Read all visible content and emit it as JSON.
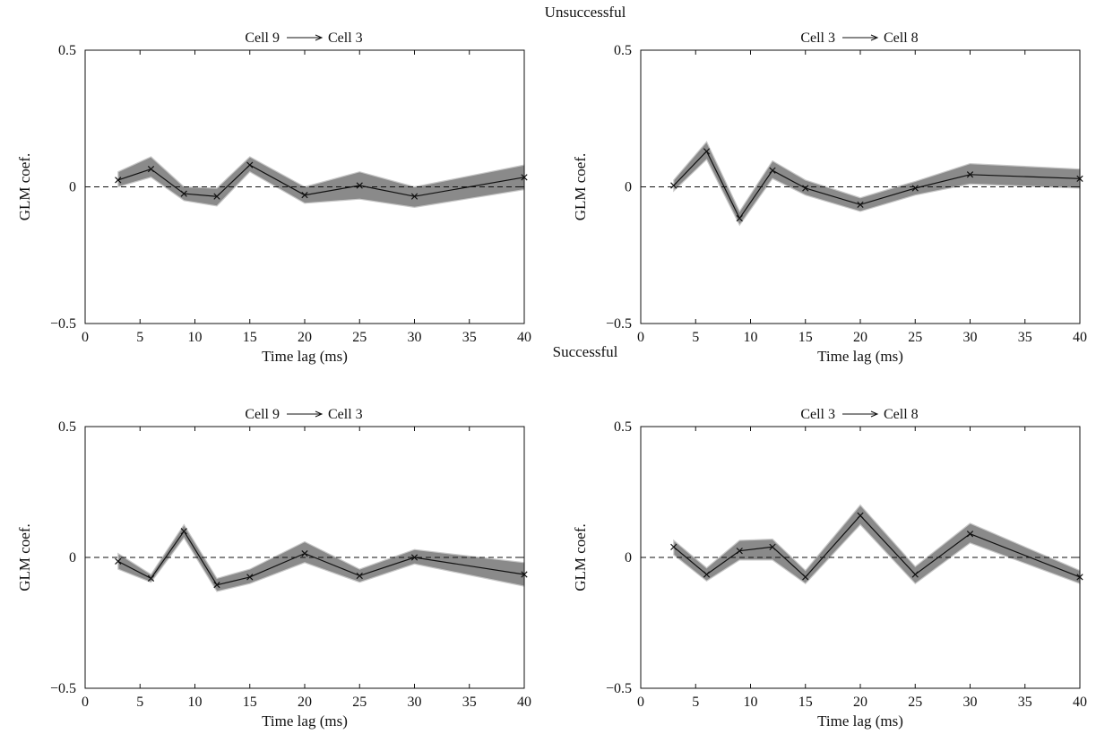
{
  "sections": {
    "unsuccessful": "Unsuccessful",
    "successful": "Successful"
  },
  "colors": {
    "band": "#8a8a8a",
    "band_edge": "#c8c8c8",
    "line": "#111111",
    "axis": "#111111"
  },
  "chart_data": [
    {
      "type": "line",
      "group": "Unsuccessful",
      "title_from": "Cell 9",
      "title_to": "Cell 3",
      "xlabel": "Time lag (ms)",
      "ylabel": "GLM coef.",
      "xlim": [
        0,
        40
      ],
      "ylim": [
        -0.5,
        0.5
      ],
      "xticks": [
        0,
        5,
        10,
        15,
        20,
        25,
        30,
        35,
        40
      ],
      "yticks": [
        -0.5,
        0,
        0.5
      ],
      "ytick_labels": [
        "−0.5",
        "0",
        "0.5"
      ],
      "grid": false,
      "reference_line": 0,
      "x": [
        3,
        6,
        9,
        12,
        15,
        20,
        25,
        30,
        40
      ],
      "y": [
        0.025,
        0.065,
        -0.025,
        -0.035,
        0.08,
        -0.03,
        0.005,
        -0.035,
        0.035
      ],
      "lower": [
        0.0,
        0.035,
        -0.05,
        -0.07,
        0.055,
        -0.06,
        -0.045,
        -0.075,
        -0.01
      ],
      "upper": [
        0.055,
        0.11,
        0.0,
        -0.005,
        0.11,
        0.0,
        0.055,
        0.0,
        0.08
      ]
    },
    {
      "type": "line",
      "group": "Unsuccessful",
      "title_from": "Cell 3",
      "title_to": "Cell 8",
      "xlabel": "Time lag (ms)",
      "ylabel": "GLM coef.",
      "xlim": [
        0,
        40
      ],
      "ylim": [
        -0.5,
        0.5
      ],
      "xticks": [
        0,
        5,
        10,
        15,
        20,
        25,
        30,
        35,
        40
      ],
      "yticks": [
        -0.5,
        0,
        0.5
      ],
      "ytick_labels": [
        "−0.5",
        "0",
        "0.5"
      ],
      "grid": false,
      "reference_line": 0,
      "x": [
        3,
        6,
        9,
        12,
        15,
        20,
        25,
        30,
        40
      ],
      "y": [
        0.005,
        0.13,
        -0.115,
        0.06,
        -0.005,
        -0.065,
        -0.005,
        0.045,
        0.03
      ],
      "lower": [
        -0.015,
        0.1,
        -0.14,
        0.03,
        -0.03,
        -0.09,
        -0.03,
        0.01,
        -0.005
      ],
      "upper": [
        0.025,
        0.165,
        -0.09,
        0.095,
        0.025,
        -0.04,
        0.02,
        0.085,
        0.065
      ]
    },
    {
      "type": "line",
      "group": "Successful",
      "title_from": "Cell 9",
      "title_to": "Cell 3",
      "xlabel": "Time lag (ms)",
      "ylabel": "GLM coef.",
      "xlim": [
        0,
        40
      ],
      "ylim": [
        -0.5,
        0.5
      ],
      "xticks": [
        0,
        5,
        10,
        15,
        20,
        25,
        30,
        35,
        40
      ],
      "yticks": [
        -0.5,
        0,
        0.5
      ],
      "ytick_labels": [
        "−0.5",
        "0",
        "0.5"
      ],
      "grid": false,
      "reference_line": 0,
      "x": [
        3,
        6,
        9,
        12,
        15,
        20,
        25,
        30,
        40
      ],
      "y": [
        -0.015,
        -0.08,
        0.1,
        -0.105,
        -0.075,
        0.015,
        -0.07,
        0.0,
        -0.065
      ],
      "lower": [
        -0.045,
        -0.095,
        0.075,
        -0.13,
        -0.1,
        -0.02,
        -0.095,
        -0.025,
        -0.11
      ],
      "upper": [
        0.015,
        -0.065,
        0.125,
        -0.08,
        -0.045,
        0.06,
        -0.045,
        0.03,
        -0.02
      ]
    },
    {
      "type": "line",
      "group": "Successful",
      "title_from": "Cell 3",
      "title_to": "Cell 8",
      "xlabel": "Time lag (ms)",
      "ylabel": "GLM coef.",
      "xlim": [
        0,
        40
      ],
      "ylim": [
        -0.5,
        0.5
      ],
      "xticks": [
        0,
        5,
        10,
        15,
        20,
        25,
        30,
        35,
        40
      ],
      "yticks": [
        -0.5,
        0,
        0.5
      ],
      "ytick_labels": [
        "−0.5",
        "0",
        "0.5"
      ],
      "grid": false,
      "reference_line": 0,
      "x": [
        3,
        6,
        9,
        12,
        15,
        20,
        25,
        30,
        40
      ],
      "y": [
        0.04,
        -0.065,
        0.025,
        0.04,
        -0.075,
        0.16,
        -0.065,
        0.09,
        -0.075
      ],
      "lower": [
        0.01,
        -0.09,
        -0.01,
        -0.01,
        -0.1,
        0.125,
        -0.1,
        0.055,
        -0.1
      ],
      "upper": [
        0.065,
        -0.04,
        0.065,
        0.07,
        -0.05,
        0.2,
        -0.035,
        0.13,
        -0.05
      ]
    }
  ]
}
